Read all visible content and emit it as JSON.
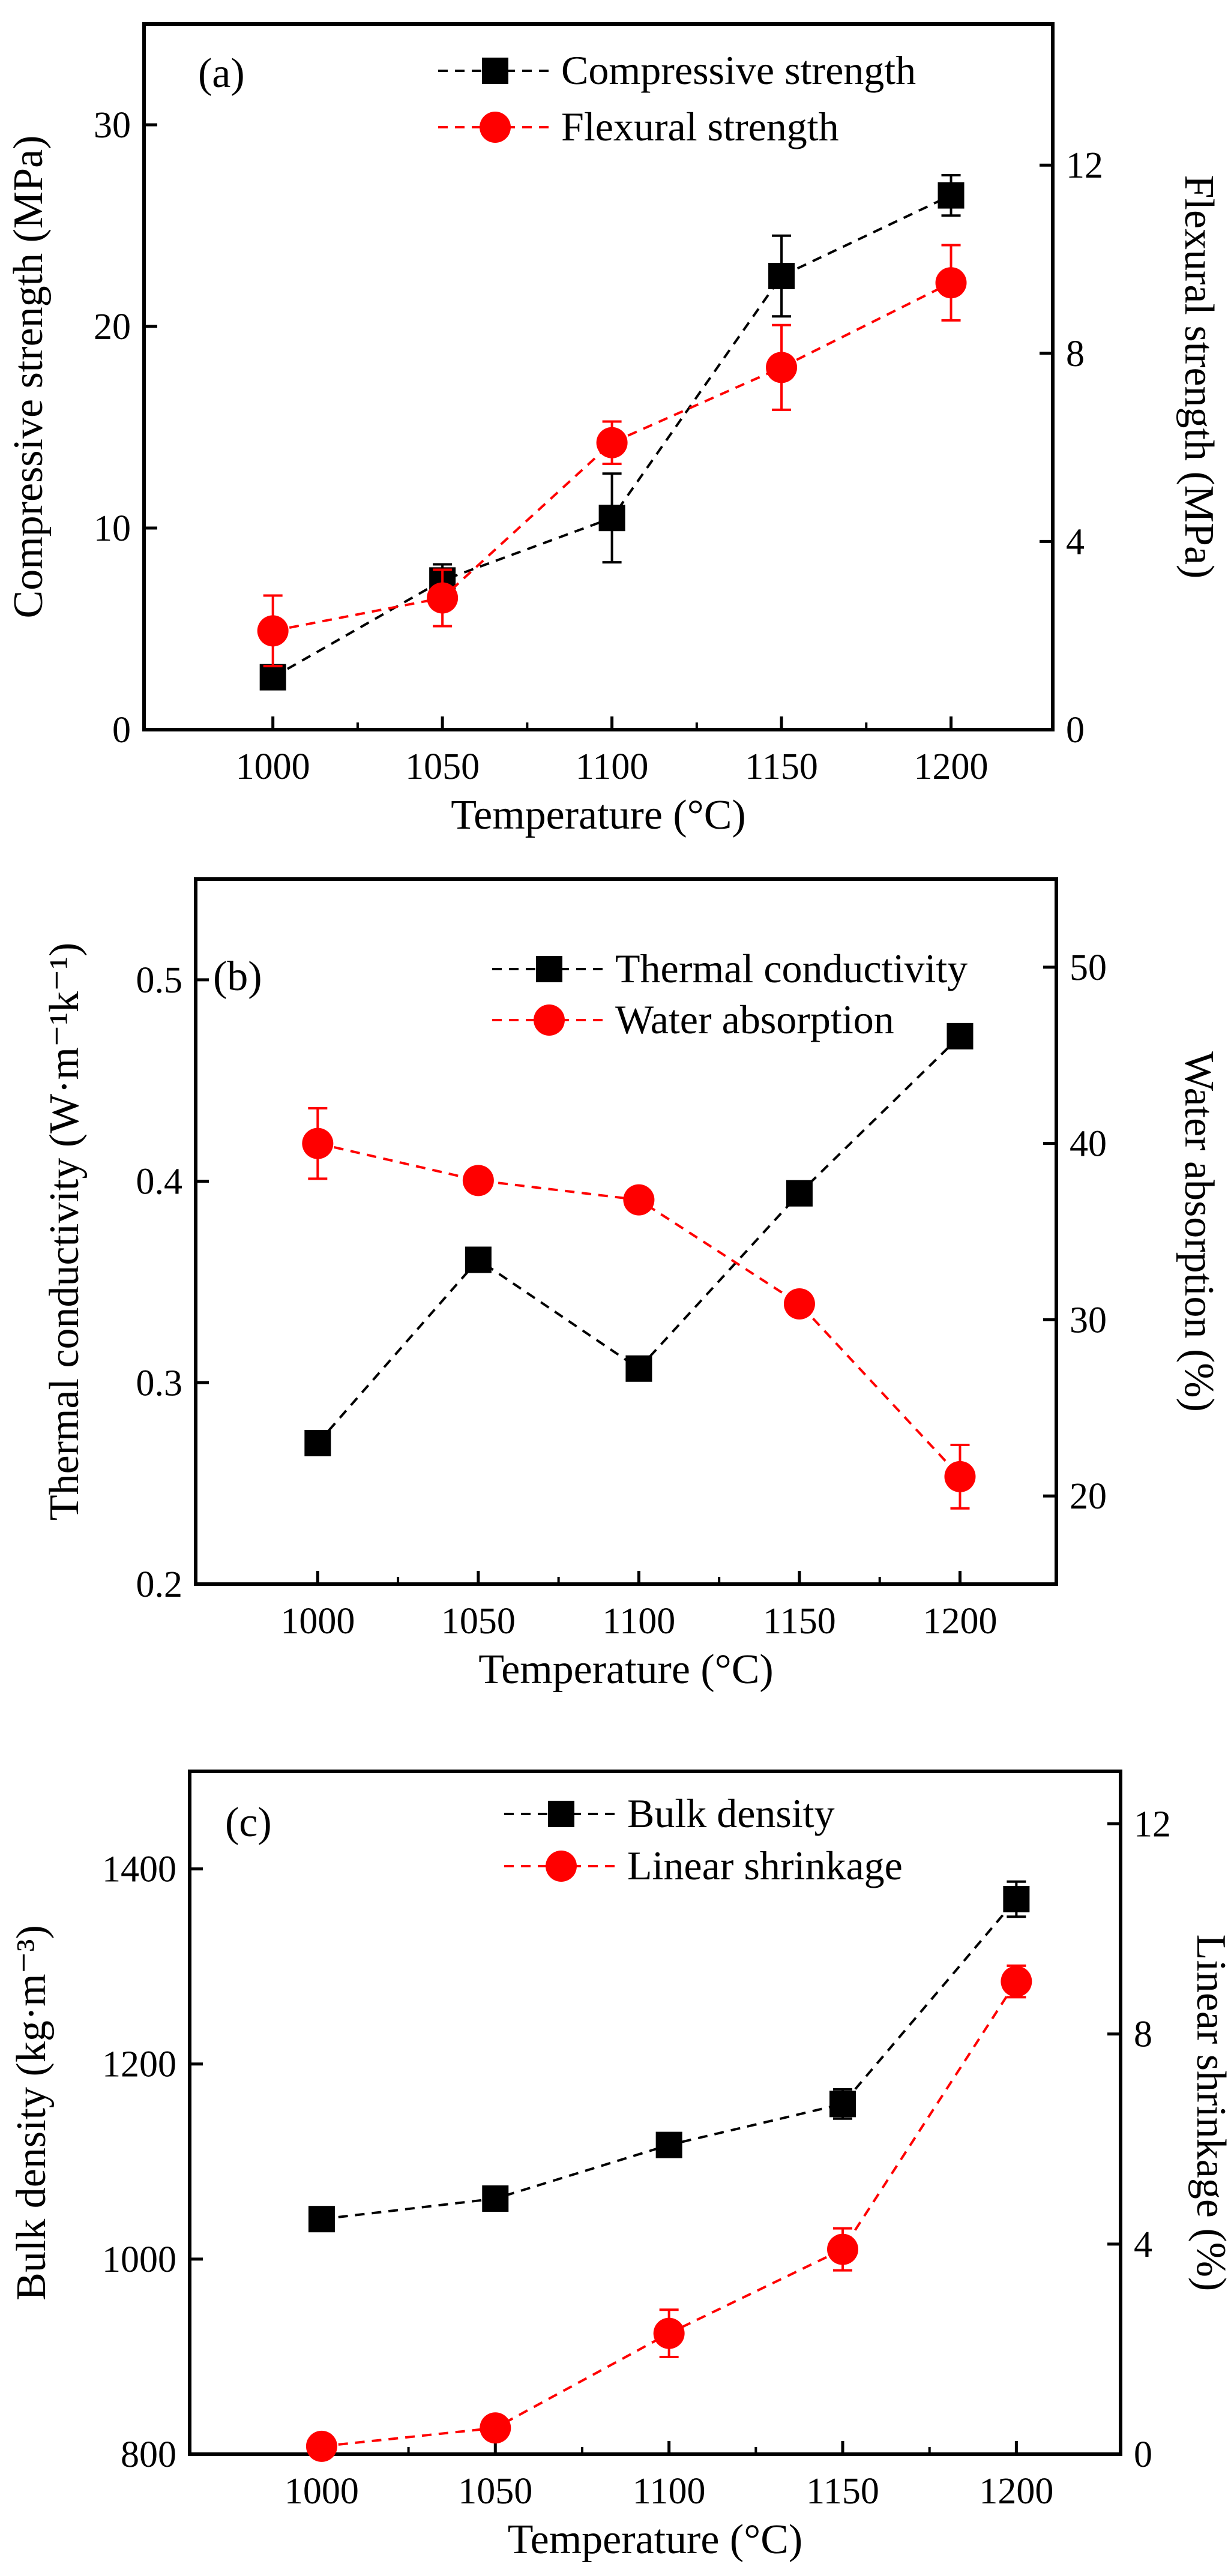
{
  "colors": {
    "series_black": "#000000",
    "series_red": "#ff0000",
    "axis": "#000000",
    "background": "#ffffff"
  },
  "chart_data": [
    {
      "type": "line",
      "panel_label": "(a)",
      "xlabel": "Temperature (°C)",
      "ylabel_left": "Compressive strength (MPa)",
      "ylabel_right": "Flexural strength (MPa)",
      "x": [
        1000,
        1050,
        1100,
        1150,
        1200
      ],
      "x_ticks": [
        "1000",
        "1050",
        "1100",
        "1150",
        "1200"
      ],
      "xlim": [
        962,
        1230
      ],
      "ylim_left": [
        0,
        35
      ],
      "ylim_right": [
        0,
        15
      ],
      "y_ticks_left": [
        "0",
        "10",
        "20",
        "30"
      ],
      "y_ticks_right": [
        "0",
        "4",
        "8",
        "12"
      ],
      "legend_position": "top-center",
      "series": [
        {
          "name": "Compressive strength",
          "axis": "left",
          "marker": "square",
          "color": "#000000",
          "values": [
            2.6,
            7.4,
            10.5,
            22.5,
            26.5
          ],
          "errors": [
            0.5,
            0.8,
            2.2,
            2.0,
            1.0
          ]
        },
        {
          "name": "Flexural strength",
          "axis": "right",
          "marker": "circle",
          "color": "#ff0000",
          "values": [
            2.1,
            2.8,
            6.1,
            7.7,
            9.5
          ],
          "errors": [
            0.75,
            0.6,
            0.45,
            0.9,
            0.8
          ]
        }
      ]
    },
    {
      "type": "line",
      "panel_label": "(b)",
      "xlabel": "Temperature (°C)",
      "ylabel_left": "Thermal conductivity (W·m⁻¹k⁻¹)",
      "ylabel_right": "Water absorption (%)",
      "x": [
        1000,
        1050,
        1100,
        1150,
        1200
      ],
      "x_ticks": [
        "1000",
        "1050",
        "1100",
        "1150",
        "1200"
      ],
      "xlim": [
        962,
        1230
      ],
      "ylim_left": [
        0.2,
        0.55
      ],
      "ylim_right": [
        15,
        55
      ],
      "y_ticks_left": [
        "0.2",
        "0.3",
        "0.4",
        "0.5"
      ],
      "y_ticks_right": [
        "20",
        "30",
        "40",
        "50"
      ],
      "legend_position": "top-right",
      "series": [
        {
          "name": "Thermal conductivity",
          "axis": "left",
          "marker": "square",
          "color": "#000000",
          "values": [
            0.27,
            0.361,
            0.307,
            0.394,
            0.472
          ],
          "errors": [
            0,
            0,
            0,
            0,
            0
          ]
        },
        {
          "name": "Water absorption",
          "axis": "right",
          "marker": "circle",
          "color": "#ff0000",
          "values": [
            40,
            37.9,
            36.8,
            30.9,
            21.1
          ],
          "errors": [
            2.0,
            0.5,
            0.5,
            0.4,
            1.8
          ]
        }
      ]
    },
    {
      "type": "line",
      "panel_label": "(c)",
      "xlabel": "Temperature (°C)",
      "ylabel_left": "Bulk density (kg·m⁻³)",
      "ylabel_right": "Linear shrinkage (%)",
      "x": [
        1000,
        1050,
        1100,
        1150,
        1200
      ],
      "x_ticks": [
        "1000",
        "1050",
        "1100",
        "1150",
        "1200"
      ],
      "xlim": [
        962,
        1230
      ],
      "ylim_left": [
        800,
        1500
      ],
      "ylim_right": [
        0,
        13
      ],
      "y_ticks_left": [
        "800",
        "1000",
        "1200",
        "1400"
      ],
      "y_ticks_right": [
        "0",
        "4",
        "8",
        "12"
      ],
      "legend_position": "top-center",
      "series": [
        {
          "name": "Bulk density",
          "axis": "left",
          "marker": "square",
          "color": "#000000",
          "values": [
            1041,
            1062,
            1117,
            1159,
            1369
          ],
          "errors": [
            0,
            5,
            12,
            15,
            18
          ]
        },
        {
          "name": "Linear shrinkage",
          "axis": "right",
          "marker": "circle",
          "color": "#ff0000",
          "values": [
            0.15,
            0.5,
            2.3,
            3.9,
            9.0
          ],
          "errors": [
            0,
            0,
            0.45,
            0.4,
            0.3
          ]
        }
      ]
    }
  ]
}
